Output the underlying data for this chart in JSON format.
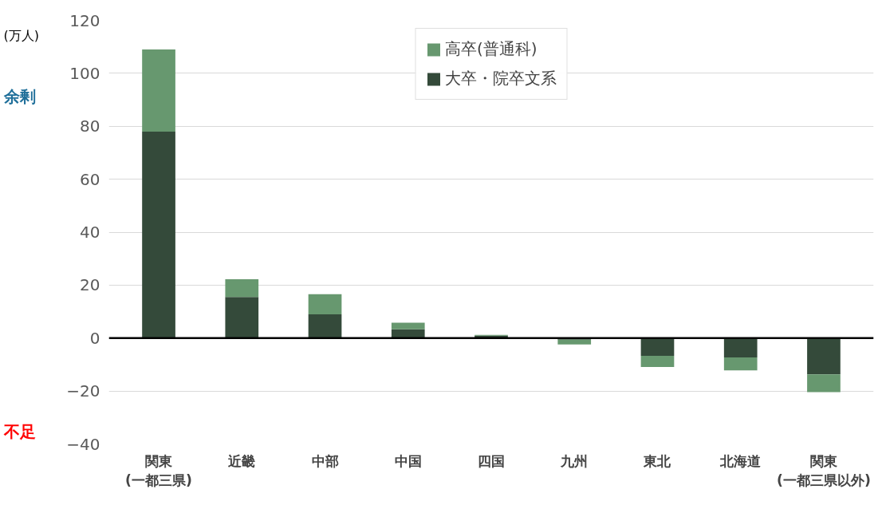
{
  "chart_data": {
    "type": "bar",
    "stacked": true,
    "ylabel": "(万人)",
    "categories": [
      "関東\n(一都三県)",
      "近畿",
      "中部",
      "中国",
      "四国",
      "九州",
      "東北",
      "北海道",
      "関東\n(一都三県以外)"
    ],
    "series": [
      {
        "name": "大卒・院卒文系",
        "color": "#344a3a",
        "values": [
          78,
          15.5,
          9,
          3.3,
          0.9,
          -0.6,
          -6.7,
          -7.3,
          -13.7
        ]
      },
      {
        "name": "高卒(普通科)",
        "color": "#67986f",
        "values": [
          31,
          6.7,
          7.6,
          2.5,
          0.3,
          -1.8,
          -4.2,
          -4.9,
          -6.7
        ]
      }
    ],
    "ylim": [
      -40,
      120
    ],
    "yticks": [
      -40,
      -20,
      0,
      20,
      40,
      60,
      80,
      100,
      120
    ],
    "grid": "y",
    "legend": "top",
    "ref_lines": [
      {
        "axis": "y",
        "value": 0,
        "color": "#000000"
      }
    ],
    "annotations": [
      "余剰",
      "不足"
    ]
  }
}
